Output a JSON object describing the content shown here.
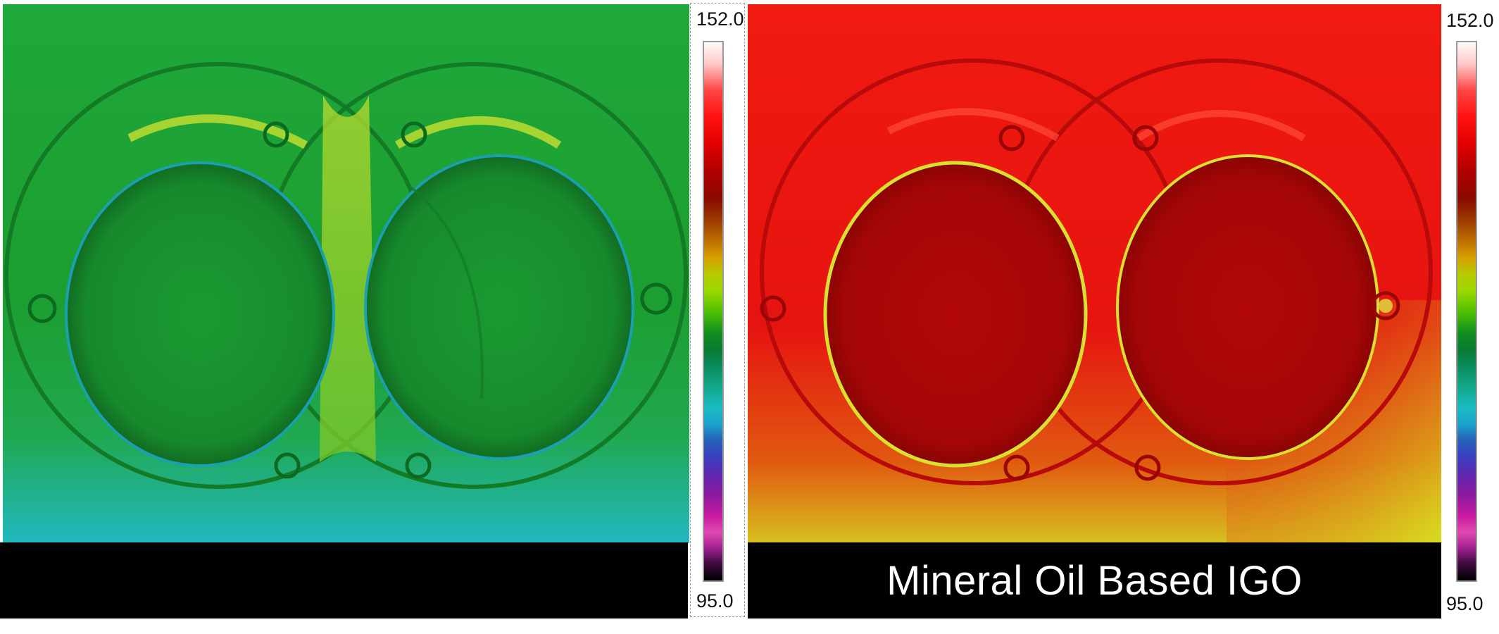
{
  "left_panel": {
    "caption": "",
    "scale": {
      "max_label": "152.0",
      "min_label": "95.0"
    },
    "colors": {
      "base": "#1aa02a",
      "highlight": "#bfe02a",
      "cool": "#18b8c8"
    }
  },
  "right_panel": {
    "caption": "Mineral Oil Based IGO",
    "scale": {
      "max_label": "152.0",
      "min_label": "95.0"
    },
    "colors": {
      "base": "#e01010",
      "dark": "#a80808",
      "warm": "#d8e020"
    }
  }
}
